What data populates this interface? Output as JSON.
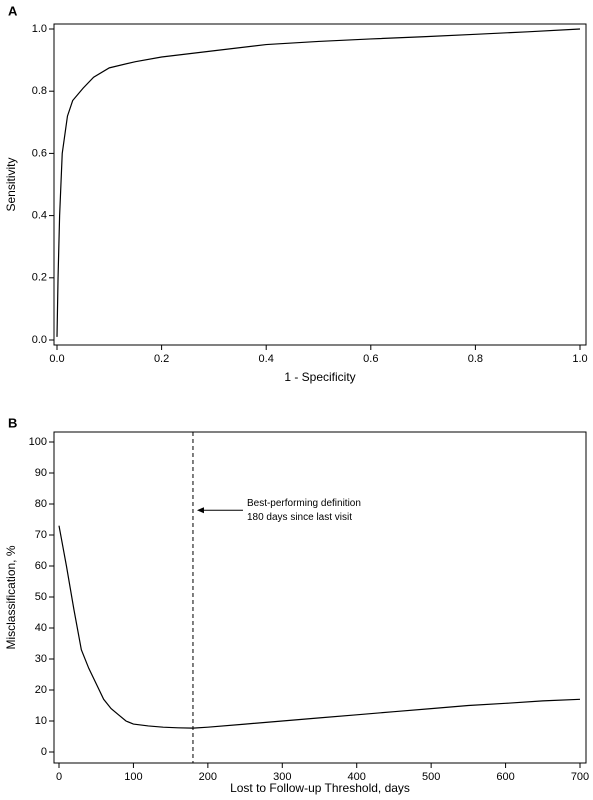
{
  "chart_data": [
    {
      "type": "line",
      "panel": "A",
      "x_label": "1 - Specificity",
      "y_label": "Sensitivity",
      "x": [
        0,
        0.002,
        0.005,
        0.01,
        0.02,
        0.03,
        0.05,
        0.07,
        0.1,
        0.15,
        0.2,
        0.3,
        0.4,
        0.5,
        0.6,
        0.7,
        0.8,
        0.9,
        1.0
      ],
      "series": [
        {
          "color": "#000000",
          "values": [
            0.01,
            0.2,
            0.4,
            0.6,
            0.72,
            0.77,
            0.81,
            0.845,
            0.875,
            0.895,
            0.91,
            0.93,
            0.95,
            0.96,
            0.968,
            0.975,
            0.983,
            0.991,
            1.0
          ]
        }
      ],
      "xlim": [
        0,
        1
      ],
      "ylim": [
        0,
        1
      ],
      "xticks": [
        {
          "value": 0,
          "label": "0.0"
        },
        {
          "value": 0.2,
          "label": "0.2"
        },
        {
          "value": 0.4,
          "label": "0.4"
        },
        {
          "value": 0.6,
          "label": "0.6"
        },
        {
          "value": 0.8,
          "label": "0.8"
        },
        {
          "value": 1,
          "label": "1.0"
        }
      ],
      "yticks": [
        {
          "value": 0,
          "label": "0.0"
        },
        {
          "value": 0.2,
          "label": "0.2"
        },
        {
          "value": 0.4,
          "label": "0.4"
        },
        {
          "value": 0.6,
          "label": "0.6"
        },
        {
          "value": 0.8,
          "label": "0.8"
        },
        {
          "value": 1,
          "label": "1.0"
        }
      ]
    },
    {
      "type": "line",
      "panel": "B",
      "x_label": "Lost to Follow-up Threshold, days",
      "y_label": "Misclassification, %",
      "x": [
        0,
        10,
        20,
        30,
        40,
        50,
        60,
        70,
        80,
        90,
        100,
        120,
        140,
        160,
        180,
        200,
        250,
        300,
        350,
        400,
        450,
        500,
        550,
        600,
        650,
        700
      ],
      "series": [
        {
          "color": "#000000",
          "values": [
            73,
            60,
            46,
            33,
            27,
            22,
            17,
            14,
            12,
            10,
            9,
            8.4,
            8,
            7.8,
            7.7,
            8,
            9,
            10,
            11,
            12,
            13,
            14,
            15,
            15.7,
            16.5,
            17
          ]
        }
      ],
      "xlim": [
        0,
        700
      ],
      "ylim": [
        0,
        100
      ],
      "xticks": [
        0,
        100,
        200,
        300,
        400,
        500,
        600,
        700
      ],
      "yticks": [
        0,
        10,
        20,
        30,
        40,
        50,
        60,
        70,
        80,
        90,
        100
      ],
      "vline": {
        "x": 180,
        "style": "dashed"
      },
      "annotation": {
        "lines": [
          "Best-performing definition",
          "180 days since last visit"
        ],
        "y": 78
      }
    }
  ]
}
